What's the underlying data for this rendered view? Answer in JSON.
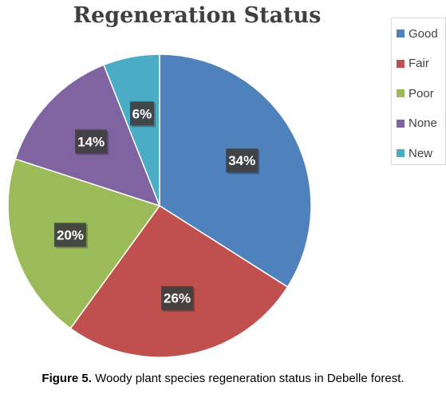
{
  "chart_data": {
    "type": "pie",
    "title": "Regeneration Status",
    "categories": [
      "Good",
      "Fair",
      "Poor",
      "None",
      "New"
    ],
    "values": [
      34,
      26,
      20,
      14,
      6
    ],
    "data_labels": [
      "34%",
      "26%",
      "20%",
      "14%",
      "6%"
    ],
    "colors": [
      "#4f81bd",
      "#c0504d",
      "#9bbb59",
      "#8064a2",
      "#4bacc6"
    ],
    "legend_position": "right"
  },
  "caption": {
    "label": "Figure 5.",
    "text": "Woody plant species regeneration status in Debelle forest."
  }
}
